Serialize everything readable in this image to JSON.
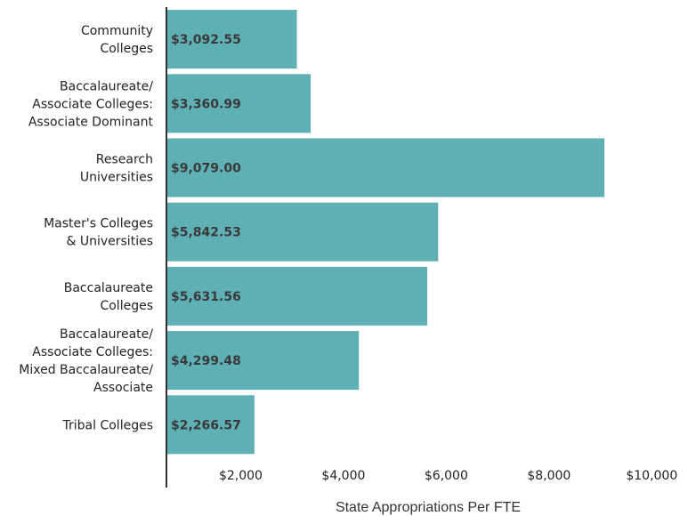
{
  "chart_data": {
    "type": "bar",
    "orientation": "horizontal",
    "categories": [
      [
        "Community",
        "Colleges"
      ],
      [
        "Baccalaureate/",
        "Associate Colleges:",
        "Associate Dominant"
      ],
      [
        "Research",
        "Universities"
      ],
      [
        "Master's Colleges",
        "& Universities"
      ],
      [
        "Baccalaureate",
        "Colleges"
      ],
      [
        "Baccalaureate/",
        "Associate Colleges:",
        "Mixed Baccalaureate/",
        "Associate"
      ],
      [
        "Tribal Colleges"
      ]
    ],
    "values": [
      3092.55,
      3360.99,
      9079.0,
      5842.53,
      5631.56,
      4299.48,
      2266.57
    ],
    "data_labels": [
      "$3,092.55",
      "$3,360.99",
      "$9,079.00",
      "$5,842.53",
      "$5,631.56",
      "$4,299.48",
      "$2,266.57"
    ],
    "x_ticks": [
      2000,
      4000,
      6000,
      8000,
      10000
    ],
    "x_tick_labels": [
      "$2,000",
      "$4,000",
      "$6,000",
      "$8,000",
      "$10,000"
    ],
    "xlabel": "State Appropriations Per FTE",
    "ylabel": "",
    "title": "",
    "xlim": [
      0,
      10000
    ],
    "bar_color": "#5fb0b5",
    "grid": false,
    "legend": "none"
  }
}
